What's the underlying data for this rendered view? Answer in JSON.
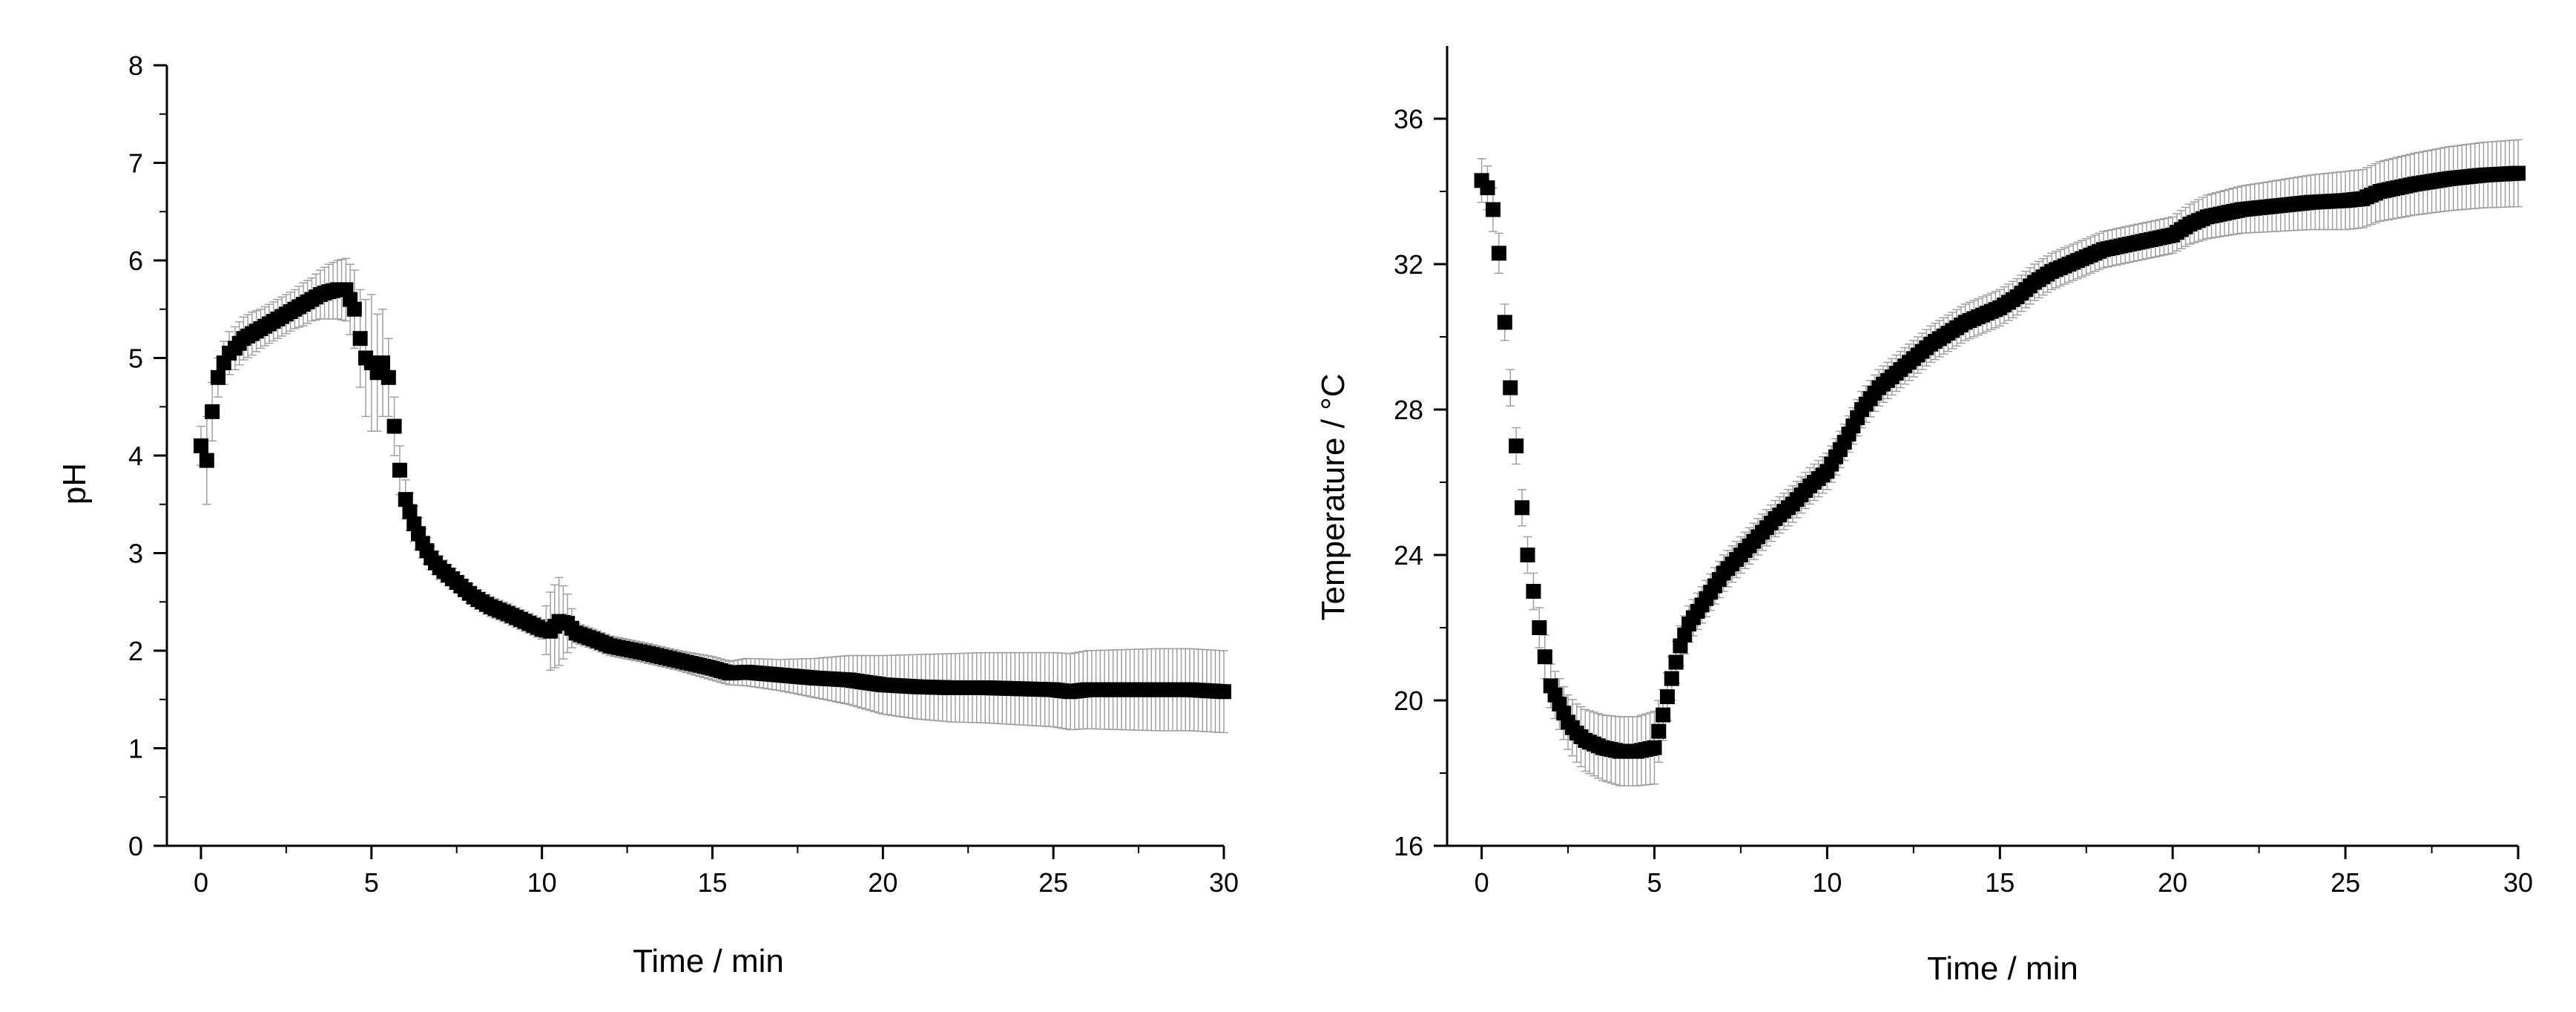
{
  "chart_data": [
    {
      "type": "scatter",
      "xlabel": "Time / min",
      "ylabel": "pH",
      "xlim": [
        -1,
        30
      ],
      "ylim": [
        0,
        8
      ],
      "xticks": [
        0,
        5,
        10,
        15,
        20,
        25,
        30
      ],
      "yticks": [
        0,
        1,
        2,
        3,
        4,
        5,
        6,
        7,
        8
      ],
      "grid": false,
      "marker": "square",
      "error_bars": true,
      "colors": {
        "marker": "#000000",
        "error_bar": "#a0a0a0",
        "axis": "#000000"
      },
      "series": [
        {
          "x": [
            0,
            0.17,
            0.33,
            0.5,
            0.67,
            0.83,
            1.0,
            1.25,
            1.5,
            1.75,
            2.0,
            2.25,
            2.5,
            2.75,
            3.0,
            3.25,
            3.5,
            3.75,
            4.0,
            4.25,
            4.5,
            4.67,
            4.83,
            5.0,
            5.17,
            5.33,
            5.5,
            5.67,
            5.83,
            6.0,
            6.25,
            6.5,
            6.75,
            7.0,
            7.5,
            8.0,
            8.5,
            9.0,
            9.5,
            10.0,
            10.25,
            10.5,
            10.75,
            11.0,
            11.5,
            12.0,
            13.0,
            14.0,
            15.0,
            15.5,
            16.0,
            17.0,
            18.0,
            19.0,
            20.0,
            21.0,
            22.0,
            23.0,
            24.0,
            25.0,
            25.5,
            26.0,
            27.0,
            28.0,
            29.0,
            30.0
          ],
          "y": [
            4.1,
            3.95,
            4.45,
            4.8,
            4.95,
            5.05,
            5.1,
            5.2,
            5.25,
            5.3,
            5.35,
            5.4,
            5.45,
            5.5,
            5.55,
            5.6,
            5.65,
            5.68,
            5.7,
            5.7,
            5.5,
            5.2,
            5.0,
            4.95,
            4.85,
            4.95,
            4.8,
            4.3,
            3.85,
            3.55,
            3.3,
            3.1,
            2.95,
            2.85,
            2.7,
            2.55,
            2.45,
            2.38,
            2.3,
            2.22,
            2.2,
            2.3,
            2.28,
            2.18,
            2.12,
            2.05,
            1.98,
            1.9,
            1.82,
            1.77,
            1.78,
            1.75,
            1.72,
            1.7,
            1.65,
            1.63,
            1.62,
            1.62,
            1.61,
            1.6,
            1.58,
            1.6,
            1.6,
            1.6,
            1.6,
            1.58
          ],
          "err": [
            0.2,
            0.45,
            0.3,
            0.2,
            0.22,
            0.22,
            0.22,
            0.22,
            0.22,
            0.2,
            0.2,
            0.2,
            0.2,
            0.2,
            0.22,
            0.22,
            0.25,
            0.28,
            0.3,
            0.32,
            0.4,
            0.5,
            0.6,
            0.7,
            0.6,
            0.55,
            0.4,
            0.3,
            0.25,
            0.2,
            0.18,
            0.15,
            0.12,
            0.12,
            0.1,
            0.1,
            0.1,
            0.1,
            0.1,
            0.1,
            0.4,
            0.45,
            0.3,
            0.1,
            0.1,
            0.1,
            0.1,
            0.1,
            0.12,
            0.12,
            0.14,
            0.16,
            0.2,
            0.25,
            0.3,
            0.33,
            0.35,
            0.36,
            0.37,
            0.38,
            0.39,
            0.4,
            0.41,
            0.42,
            0.42,
            0.42
          ]
        }
      ]
    },
    {
      "type": "scatter",
      "xlabel": "Time / min",
      "ylabel": "Temperature / °C",
      "xlim": [
        -1,
        30
      ],
      "ylim": [
        16,
        38
      ],
      "xticks": [
        0,
        5,
        10,
        15,
        20,
        25,
        30
      ],
      "yticks": [
        16,
        20,
        24,
        28,
        32,
        36
      ],
      "grid": false,
      "marker": "square",
      "error_bars": true,
      "colors": {
        "marker": "#000000",
        "error_bar": "#a0a0a0",
        "axis": "#000000"
      },
      "series": [
        {
          "x": [
            0,
            0.17,
            0.33,
            0.5,
            0.67,
            0.83,
            1.0,
            1.17,
            1.33,
            1.5,
            1.67,
            1.83,
            2.0,
            2.25,
            2.5,
            2.75,
            3.0,
            3.5,
            4.0,
            4.5,
            5.0,
            5.25,
            5.5,
            5.75,
            6.0,
            6.5,
            7.0,
            7.5,
            8.0,
            8.5,
            9.0,
            9.5,
            10.0,
            10.5,
            11.0,
            11.5,
            12.0,
            12.5,
            13.0,
            13.5,
            14.0,
            14.5,
            15.0,
            15.5,
            16.0,
            16.5,
            17.0,
            17.5,
            18.0,
            19.0,
            20.0,
            20.5,
            21.0,
            22.0,
            23.0,
            24.0,
            25.0,
            25.5,
            26.0,
            27.0,
            28.0,
            29.0,
            30.0
          ],
          "y": [
            34.3,
            34.1,
            33.5,
            32.3,
            30.4,
            28.6,
            27.0,
            25.3,
            24.0,
            23.0,
            22.0,
            21.2,
            20.4,
            19.9,
            19.4,
            19.1,
            18.9,
            18.7,
            18.6,
            18.6,
            18.7,
            19.6,
            20.6,
            21.5,
            22.1,
            22.8,
            23.5,
            24.0,
            24.5,
            25.0,
            25.4,
            25.9,
            26.3,
            27.1,
            28.0,
            28.6,
            29.0,
            29.4,
            29.8,
            30.1,
            30.4,
            30.6,
            30.8,
            31.1,
            31.5,
            31.8,
            32.0,
            32.2,
            32.4,
            32.6,
            32.8,
            33.1,
            33.3,
            33.5,
            33.6,
            33.7,
            33.75,
            33.8,
            34.0,
            34.2,
            34.35,
            34.45,
            34.5
          ],
          "err": [
            0.6,
            0.6,
            0.6,
            0.55,
            0.5,
            0.5,
            0.5,
            0.5,
            0.5,
            0.5,
            0.55,
            0.6,
            0.6,
            0.7,
            0.75,
            0.8,
            0.85,
            0.9,
            0.95,
            0.95,
            1.0,
            0.7,
            0.6,
            0.55,
            0.5,
            0.5,
            0.5,
            0.5,
            0.5,
            0.5,
            0.5,
            0.5,
            0.5,
            0.5,
            0.5,
            0.5,
            0.5,
            0.5,
            0.5,
            0.5,
            0.5,
            0.5,
            0.5,
            0.5,
            0.5,
            0.5,
            0.5,
            0.5,
            0.5,
            0.5,
            0.5,
            0.55,
            0.6,
            0.65,
            0.7,
            0.75,
            0.8,
            0.8,
            0.82,
            0.85,
            0.88,
            0.9,
            0.92
          ]
        }
      ]
    }
  ]
}
